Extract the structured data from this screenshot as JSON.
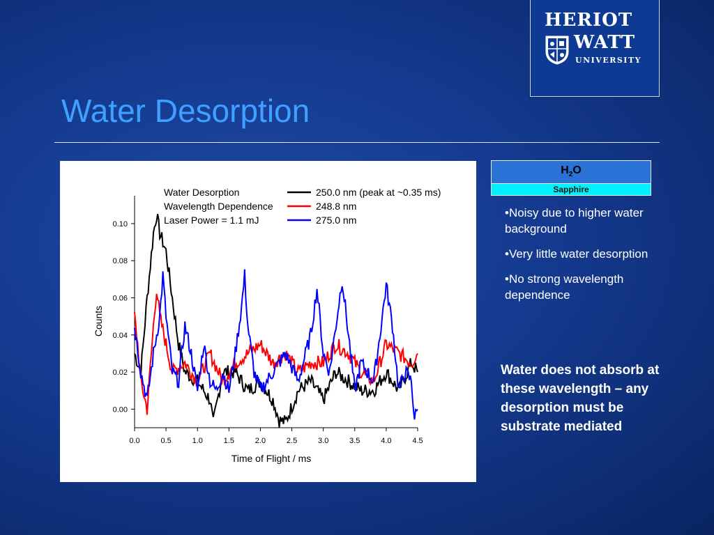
{
  "logo": {
    "line1": "HERIOT",
    "line2": "WATT",
    "line3": "UNIVERSITY"
  },
  "slide": {
    "title": "Water Desorption"
  },
  "table": {
    "header_h": "H",
    "header_sub": "2",
    "header_o": "O",
    "row": "Sapphire"
  },
  "bullets": [
    "•Noisy due to higher water background",
    "•Very little water desorption",
    "•No strong wavelength dependence"
  ],
  "conclusion": "Water does not absorb at these wavelength – any desorption must be substrate mediated",
  "colors": {
    "black": "#000000",
    "red": "#ff0000",
    "blue": "#0000ff",
    "title": "#3ea0ff"
  },
  "chart_data": {
    "type": "line",
    "xlabel": "Time of Flight / ms",
    "ylabel": "Counts",
    "xlim": [
      0,
      4.5
    ],
    "ylim": [
      -0.01,
      0.115
    ],
    "x_ticks": [
      "0.0",
      "0.5",
      "1.0",
      "1.5",
      "2.0",
      "2.5",
      "3.0",
      "3.5",
      "4.0",
      "4.5"
    ],
    "y_ticks": [
      "0.00",
      "0.02",
      "0.04",
      "0.06",
      "0.08",
      "0.10"
    ],
    "legend_title": [
      "Water Desorption",
      "Wavelength Dependence",
      "Laser Power = 1.1 mJ"
    ],
    "legend_position": "top-right",
    "series": [
      {
        "name": "250.0 nm (peak at ~0.35 ms)",
        "color": "#000000",
        "x": [
          0,
          0.1,
          0.2,
          0.3,
          0.35,
          0.4,
          0.5,
          0.6,
          0.7,
          0.8,
          1.0,
          1.2,
          1.25,
          1.4,
          1.6,
          1.8,
          2.0,
          2.2,
          2.3,
          2.4,
          2.6,
          2.8,
          3.0,
          3.2,
          3.4,
          3.6,
          3.8,
          4.0,
          4.2,
          4.4,
          4.5
        ],
        "y": [
          0.03,
          0.02,
          0.06,
          0.095,
          0.105,
          0.095,
          0.085,
          0.06,
          0.035,
          0.02,
          0.015,
          0.005,
          -0.008,
          0.02,
          0.02,
          0.01,
          0.015,
          0.005,
          -0.006,
          -0.007,
          0.01,
          0.015,
          0.005,
          0.02,
          0.015,
          0.01,
          0.01,
          0.02,
          0.01,
          0.025,
          0.02
        ]
      },
      {
        "name": "248.8 nm",
        "color": "#ff0000",
        "x": [
          0,
          0.05,
          0.1,
          0.2,
          0.3,
          0.35,
          0.4,
          0.5,
          0.6,
          0.8,
          1.0,
          1.2,
          1.4,
          1.6,
          1.8,
          2.0,
          2.2,
          2.4,
          2.6,
          2.8,
          3.0,
          3.2,
          3.4,
          3.6,
          3.8,
          4.0,
          4.2,
          4.4,
          4.5
        ],
        "y": [
          0.05,
          0.035,
          0.015,
          0.0,
          0.045,
          0.065,
          0.05,
          0.035,
          0.02,
          0.025,
          0.015,
          0.03,
          0.015,
          0.025,
          0.03,
          0.035,
          0.025,
          0.03,
          0.02,
          0.025,
          0.025,
          0.035,
          0.03,
          0.02,
          0.015,
          0.035,
          0.03,
          0.025,
          0.03
        ]
      },
      {
        "name": "275.0 nm",
        "color": "#0000ff",
        "x": [
          0,
          0.1,
          0.2,
          0.3,
          0.4,
          0.45,
          0.5,
          0.6,
          0.7,
          0.8,
          0.9,
          1.0,
          1.1,
          1.2,
          1.3,
          1.4,
          1.5,
          1.6,
          1.7,
          1.75,
          1.8,
          1.9,
          2.0,
          2.2,
          2.4,
          2.6,
          2.8,
          2.9,
          3.0,
          3.1,
          3.2,
          3.3,
          3.4,
          3.5,
          3.6,
          3.8,
          3.9,
          4.0,
          4.1,
          4.2,
          4.3,
          4.4,
          4.45,
          4.5
        ],
        "y": [
          0.045,
          0.02,
          0.005,
          0.03,
          0.05,
          0.072,
          0.05,
          0.02,
          0.015,
          0.045,
          0.03,
          0.01,
          0.035,
          0.015,
          0.01,
          0.02,
          0.01,
          0.03,
          0.055,
          0.072,
          0.045,
          0.02,
          0.01,
          0.02,
          0.03,
          0.015,
          0.04,
          0.065,
          0.03,
          0.02,
          0.045,
          0.07,
          0.04,
          0.01,
          0.025,
          0.015,
          0.04,
          0.067,
          0.045,
          0.01,
          0.02,
          0.015,
          -0.005,
          0.0
        ]
      }
    ]
  }
}
